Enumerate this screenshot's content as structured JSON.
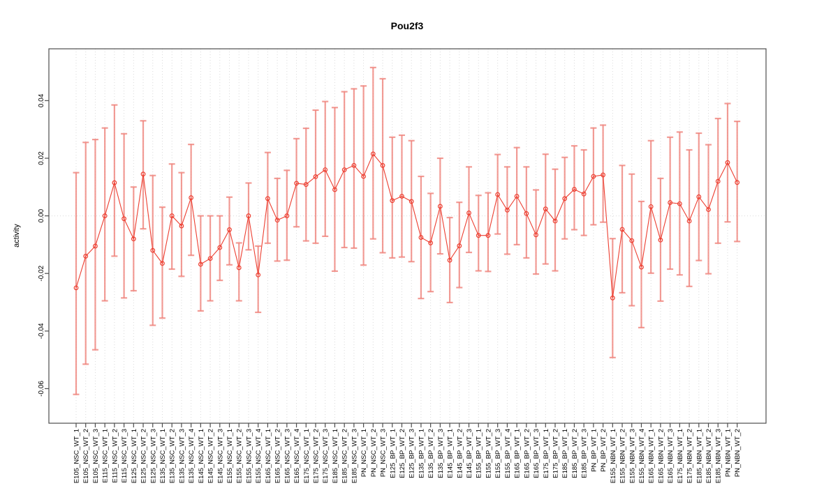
{
  "chart_data": {
    "type": "scatter",
    "title": "Pou2f3",
    "xlabel": "",
    "ylabel": "activity",
    "legend": "none",
    "grid": "vertical dotted line per category; horizontal dotted line at y=0",
    "ylim": [
      -0.072,
      0.058
    ],
    "yticks": [
      -0.06,
      -0.04,
      -0.02,
      0.0,
      0.02,
      0.04
    ],
    "marker": "open-circle with vertical error bars and end caps, connected by line",
    "categories": [
      "E105_NSC_WT_1",
      "E105_NSC_WT_2",
      "E105_NSC_WT_3",
      "E115_NSC_WT_1",
      "E115_NSC_WT_2",
      "E115_NSC_WT_3",
      "E125_NSC_WT_1",
      "E125_NSC_WT_2",
      "E125_NSC_WT_3",
      "E135_NSC_WT_1",
      "E135_NSC_WT_2",
      "E135_NSC_WT_3",
      "E135_NSC_WT_4",
      "E145_NSC_WT_1",
      "E145_NSC_WT_2",
      "E145_NSC_WT_3",
      "E155_NSC_WT_1",
      "E155_NSC_WT_2",
      "E155_NSC_WT_3",
      "E155_NSC_WT_4",
      "E165_NSC_WT_1",
      "E165_NSC_WT_2",
      "E165_NSC_WT_3",
      "E165_NSC_WT_4",
      "E175_NSC_WT_1",
      "E175_NSC_WT_2",
      "E175_NSC_WT_3",
      "E185_NSC_WT_1",
      "E185_NSC_WT_2",
      "E185_NSC_WT_3",
      "PN_NSC_WT_1",
      "PN_NSC_WT_2",
      "PN_NSC_WT_3",
      "E125_BP_WT_1",
      "E125_BP_WT_2",
      "E125_BP_WT_3",
      "E135_BP_WT_1",
      "E135_BP_WT_2",
      "E135_BP_WT_3",
      "E145_BP_WT_1",
      "E145_BP_WT_2",
      "E145_BP_WT_3",
      "E155_BP_WT_1",
      "E155_BP_WT_2",
      "E155_BP_WT_3",
      "E155_BP_WT_4",
      "E165_BP_WT_1",
      "E165_BP_WT_2",
      "E165_BP_WT_3",
      "E175_BP_WT_1",
      "E175_BP_WT_2",
      "E185_BP_WT_1",
      "E185_BP_WT_2",
      "E185_BP_WT_3",
      "PN_BP_WT_1",
      "PN_BP_WT_2",
      "E155_NBN_WT_1",
      "E155_NBN_WT_2",
      "E155_NBN_WT_3",
      "E155_NBN_WT_4",
      "E165_NBN_WT_1",
      "E165_NBN_WT_2",
      "E165_NBN_WT_3",
      "E175_NBN_WT_1",
      "E175_NBN_WT_2",
      "E185_NBN_WT_1",
      "E185_NBN_WT_2",
      "E185_NBN_WT_3",
      "PN_NBN_WT_1",
      "PN_NBN_WT_2"
    ],
    "series": [
      {
        "name": "activity",
        "values": [
          -0.025,
          -0.014,
          -0.0105,
          0.0,
          0.0115,
          -0.001,
          -0.008,
          0.0145,
          -0.012,
          -0.0165,
          0.0,
          -0.0035,
          0.0063,
          -0.0168,
          -0.0148,
          -0.011,
          -0.0048,
          -0.018,
          0.0,
          -0.0205,
          0.006,
          -0.0015,
          0.0,
          0.0113,
          0.0109,
          0.0136,
          0.016,
          0.0091,
          0.016,
          0.0175,
          0.0137,
          0.0215,
          0.0175,
          0.0053,
          0.0068,
          0.005,
          -0.0075,
          -0.0094,
          0.0033,
          -0.0154,
          -0.0104,
          0.001,
          -0.0068,
          -0.0068,
          0.0074,
          0.002,
          0.0068,
          0.0008,
          -0.0066,
          0.0024,
          -0.0018,
          0.006,
          0.0092,
          0.0076,
          0.0137,
          0.0142,
          -0.0285,
          -0.0047,
          -0.0086,
          -0.0178,
          0.0032,
          -0.0084,
          0.0046,
          0.0042,
          -0.0018,
          0.0066,
          0.0022,
          0.012,
          0.0185,
          0.0116
        ],
        "error_high": [
          0.015,
          0.0255,
          0.0265,
          0.0305,
          0.0385,
          0.0285,
          0.01,
          0.033,
          0.014,
          0.003,
          0.018,
          0.015,
          0.0248,
          0.0,
          0.0,
          0.0,
          0.0065,
          -0.0094,
          0.0114,
          -0.0105,
          0.022,
          0.013,
          0.0158,
          0.0268,
          0.0304,
          0.0367,
          0.0397,
          0.0376,
          0.0431,
          0.0441,
          0.0451,
          0.0515,
          0.0476,
          0.0273,
          0.028,
          0.0261,
          0.0137,
          0.0078,
          0.02,
          -0.0006,
          0.0047,
          0.017,
          0.0071,
          0.008,
          0.0213,
          0.017,
          0.0237,
          0.017,
          0.009,
          0.0214,
          0.0162,
          0.0203,
          0.0243,
          0.0229,
          0.0305,
          0.0315,
          -0.0079,
          0.0175,
          0.0145,
          0.005,
          0.0261,
          0.013,
          0.0273,
          0.0291,
          0.0229,
          0.0287,
          0.0247,
          0.0338,
          0.039,
          0.0328
        ],
        "error_low": [
          -0.062,
          -0.0515,
          -0.0465,
          -0.0295,
          -0.014,
          -0.0285,
          -0.026,
          -0.0045,
          -0.038,
          -0.0355,
          -0.0185,
          -0.021,
          -0.0137,
          -0.033,
          -0.0295,
          -0.0224,
          -0.017,
          -0.0295,
          -0.0118,
          -0.0335,
          -0.0095,
          -0.0157,
          -0.0154,
          -0.0038,
          -0.0087,
          -0.0095,
          -0.0071,
          -0.0192,
          -0.011,
          -0.0112,
          -0.0171,
          -0.008,
          -0.0128,
          -0.0146,
          -0.0143,
          -0.0159,
          -0.0287,
          -0.0263,
          -0.0132,
          -0.0301,
          -0.0249,
          -0.0127,
          -0.0191,
          -0.0193,
          -0.0063,
          -0.0133,
          -0.01,
          -0.0146,
          -0.0202,
          -0.0167,
          -0.0191,
          -0.008,
          -0.0048,
          -0.0068,
          -0.0031,
          -0.0022,
          -0.0492,
          -0.0267,
          -0.0312,
          -0.0388,
          -0.0199,
          -0.0296,
          -0.0185,
          -0.0205,
          -0.0245,
          -0.0155,
          -0.0201,
          -0.0095,
          -0.0021,
          -0.0089
        ]
      }
    ]
  },
  "colors": {
    "point_line": "#ed3e30",
    "error_bar": "#f0837b",
    "grid": "#d9d9d9",
    "axis": "#4d4d4d",
    "text": "#000000"
  }
}
